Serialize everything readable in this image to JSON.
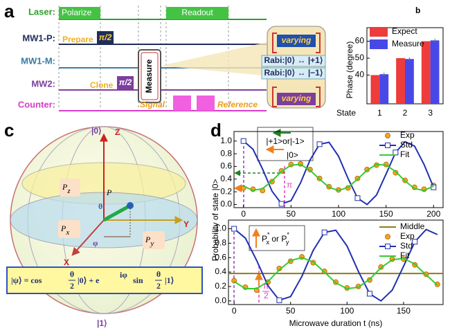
{
  "panel_a": {
    "label": "a",
    "rows": [
      "Laser:",
      "MW1-P:",
      "MW1-M:",
      "MW2:",
      "Counter:"
    ],
    "pulses": {
      "polarize": "Polarize",
      "readout": "Readout",
      "prepare": "Prepare",
      "prepare_pulse": "π/2",
      "clone": "Clone",
      "clone_pulse": "π/2",
      "measure": "Measure",
      "signal": "Signal",
      "reference": "Reference"
    },
    "inset": {
      "varying_top": "varying",
      "rabi_plus": "Rabi:|0⟩ ↔ |+1⟩",
      "rabi_minus": "Rabi:|0⟩ ↔ |−1⟩",
      "varying_bottom": "varying"
    }
  },
  "panel_c": {
    "label": "c",
    "top_state": "|0⟩",
    "bottom_state": "|1⟩",
    "z_axis": "Z",
    "y_axis": "Y",
    "x_axis": "X",
    "pz": [
      "P",
      "z"
    ],
    "p": "P",
    "theta": "θ",
    "px": [
      "P",
      "x"
    ],
    "py": [
      "P",
      "y"
    ],
    "phi": "φ",
    "formula": [
      "|ψ⟩ = cos",
      "θ",
      "2",
      "|0⟩ + e",
      "iφ",
      "sin",
      "θ",
      "2",
      "|1⟩"
    ]
  },
  "panel_d": {
    "label": "d",
    "ylabel": "Probability of state |0>",
    "xlabel": "Microwave duration t (ns)",
    "top_annotation": [
      "|+1>or|-1>",
      "|0>",
      "π"
    ],
    "bottom_annotation": [
      "P",
      "x",
      "*",
      " or ",
      "P",
      "y",
      "*",
      "π",
      "2"
    ]
  },
  "chart_data": [
    {
      "type": "bar",
      "label": "b",
      "xlabel": "State",
      "ylabel": "Phase (degree)",
      "categories": [
        "1",
        "2",
        "3"
      ],
      "series": [
        {
          "name": "Expect",
          "color": "#ee3b3b",
          "values": [
            40,
            50,
            60
          ]
        },
        {
          "name": "Measure",
          "color": "#4848e8",
          "values": [
            40.5,
            49.5,
            60.5
          ],
          "errors": [
            1,
            1,
            1
          ]
        }
      ],
      "ylim": [
        23,
        68
      ],
      "yticks": [
        40,
        50,
        60
      ]
    },
    {
      "type": "line",
      "xlim": [
        -10,
        210
      ],
      "xticks": [
        0,
        50,
        100,
        150,
        200
      ],
      "ylim": [
        -0.05,
        1.15
      ],
      "yticks": [
        {
          "value": 0,
          "label": "0.0"
        },
        0.2,
        0.4,
        0.6,
        0.8,
        {
          "value": 1,
          "label": "1.0"
        }
      ],
      "series": [
        {
          "name": "Exp",
          "color": "#f5a623",
          "style": "circle",
          "x": [
            0,
            10,
            20,
            30,
            40,
            50,
            60,
            70,
            80,
            90,
            100,
            110,
            120,
            130,
            140,
            150,
            160,
            170,
            180,
            190,
            200
          ],
          "values": [
            0.26,
            0.24,
            0.22,
            0.36,
            0.53,
            0.63,
            0.64,
            0.55,
            0.41,
            0.28,
            0.23,
            0.26,
            0.41,
            0.55,
            0.62,
            0.63,
            0.5,
            0.38,
            0.27,
            0.24,
            0.3
          ]
        },
        {
          "name": "Std",
          "color": "#1f2fb0",
          "style": "line-square",
          "x": [
            0,
            10,
            20,
            30,
            40,
            50,
            60,
            70,
            80,
            90,
            100,
            110,
            120,
            130,
            140,
            150,
            160,
            170,
            180,
            190,
            200
          ],
          "values": [
            1.0,
            0.87,
            0.56,
            0.21,
            0.01,
            0.06,
            0.34,
            0.7,
            0.95,
            0.98,
            0.76,
            0.41,
            0.1,
            0.0,
            0.15,
            0.48,
            0.82,
            0.99,
            0.92,
            0.63,
            0.27
          ]
        },
        {
          "name": "Fit",
          "color": "#33cc33",
          "style": "line",
          "x": [
            0,
            10,
            20,
            30,
            40,
            50,
            60,
            70,
            80,
            90,
            100,
            110,
            120,
            130,
            140,
            150,
            160,
            170,
            180,
            190,
            200
          ],
          "values": [
            0.29,
            0.22,
            0.25,
            0.37,
            0.52,
            0.62,
            0.63,
            0.54,
            0.4,
            0.27,
            0.22,
            0.27,
            0.4,
            0.54,
            0.63,
            0.62,
            0.52,
            0.37,
            0.25,
            0.22,
            0.29
          ]
        }
      ]
    },
    {
      "type": "line",
      "xlim": [
        -5,
        185
      ],
      "xticks": [
        0,
        50,
        100,
        150
      ],
      "ylim": [
        -0.05,
        1.12
      ],
      "yticks": [
        {
          "value": 0,
          "label": "0.0"
        },
        0.2,
        0.4,
        0.6,
        0.8,
        {
          "value": 1,
          "label": "1.0"
        }
      ],
      "series": [
        {
          "name": "Middle",
          "color": "#8b7d1a",
          "style": "line",
          "x": [
            -5,
            185
          ],
          "values": [
            0.38,
            0.38
          ]
        },
        {
          "name": "Exp",
          "color": "#f5a623",
          "style": "circle",
          "x": [
            0,
            10,
            20,
            30,
            40,
            50,
            60,
            70,
            80,
            90,
            100,
            110,
            120,
            130,
            140,
            150,
            160,
            170,
            180
          ],
          "values": [
            0.28,
            0.19,
            0.15,
            0.26,
            0.45,
            0.55,
            0.61,
            0.53,
            0.41,
            0.26,
            0.18,
            0.2,
            0.29,
            0.47,
            0.58,
            0.58,
            0.5,
            0.37,
            0.23
          ]
        },
        {
          "name": "Std",
          "color": "#1f2fb0",
          "style": "line-square",
          "x": [
            0,
            10,
            20,
            30,
            40,
            50,
            60,
            70,
            80,
            90,
            100,
            110,
            120,
            130,
            140,
            150,
            160,
            170,
            180
          ],
          "values": [
            1.0,
            0.87,
            0.56,
            0.21,
            0.01,
            0.06,
            0.34,
            0.7,
            0.95,
            0.98,
            0.76,
            0.41,
            0.1,
            0.0,
            0.15,
            0.48,
            0.82,
            0.99,
            0.92
          ]
        },
        {
          "name": "Fit",
          "color": "#33cc33",
          "style": "line",
          "x": [
            0,
            10,
            20,
            30,
            40,
            50,
            60,
            70,
            80,
            90,
            100,
            110,
            120,
            130,
            140,
            150,
            160,
            170,
            180
          ],
          "values": [
            0.27,
            0.17,
            0.17,
            0.27,
            0.43,
            0.56,
            0.6,
            0.54,
            0.4,
            0.25,
            0.17,
            0.19,
            0.3,
            0.46,
            0.57,
            0.59,
            0.51,
            0.36,
            0.22
          ]
        }
      ]
    }
  ]
}
